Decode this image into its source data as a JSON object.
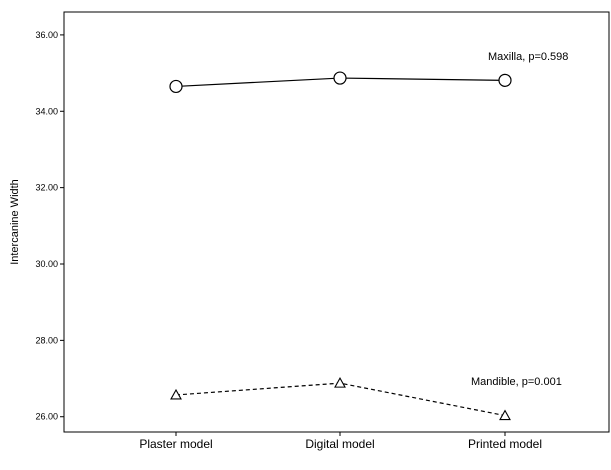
{
  "chart_data": {
    "type": "line",
    "title": "",
    "xlabel": "",
    "ylabel": "Intercanine Width",
    "categories": [
      "Plaster model",
      "Digital model",
      "Printed model"
    ],
    "ylim": [
      25.6,
      36.6
    ],
    "yticks": [
      "26.00",
      "28.00",
      "30.00",
      "32.00",
      "34.00",
      "36.00"
    ],
    "grid": false,
    "series": [
      {
        "name": "",
        "values": [
          34.65,
          34.87,
          34.81
        ],
        "line_style": "solid",
        "marker": "circle",
        "color": "#000000"
      },
      {
        "name": "",
        "values": [
          26.57,
          26.88,
          26.03
        ],
        "line_style": "dashed",
        "marker": "triangle",
        "color": "#000000"
      }
    ],
    "annotations": [
      {
        "text": "Maxilla, p=0.598",
        "series": 0
      },
      {
        "text": "Mandible, p=0.001",
        "series": 1
      }
    ]
  }
}
